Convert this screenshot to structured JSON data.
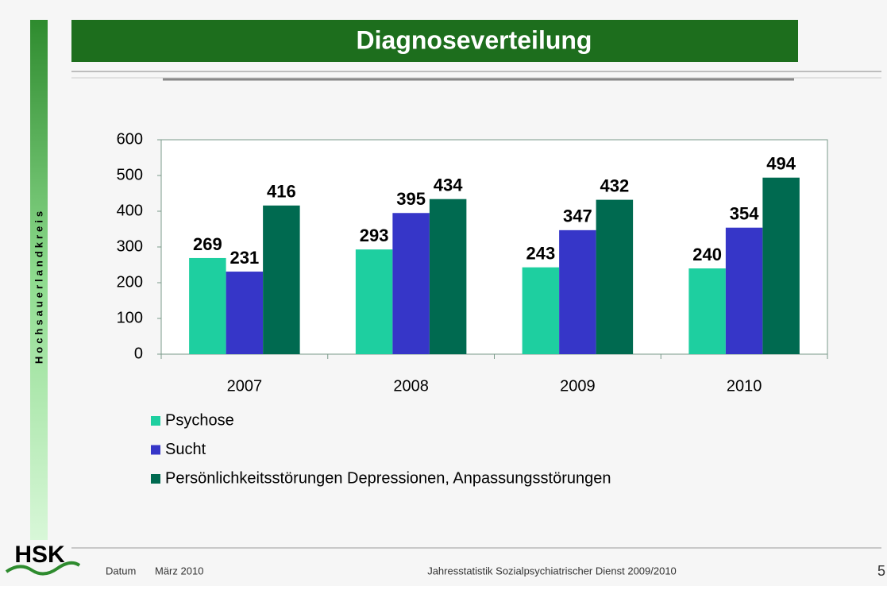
{
  "slide": {
    "side_label": "Hochsauerlandkreis",
    "logo": "HSK",
    "footer_label": "Datum",
    "footer_date": "März 2010",
    "footer_text": "Jahresstatistik Sozialpsychiatrischer Dienst 2009/2010",
    "page_number": "5"
  },
  "chart_data": {
    "type": "bar",
    "title": "Diagnoseverteilung",
    "categories": [
      "2007",
      "2008",
      "2009",
      "2010"
    ],
    "series": [
      {
        "name": "Psychose",
        "color": "#1ecfa0",
        "values": [
          269,
          293,
          243,
          240
        ]
      },
      {
        "name": "Sucht",
        "color": "#3636c8",
        "values": [
          231,
          395,
          347,
          354
        ]
      },
      {
        "name": "Persönlichkeitsstörungen Depressionen, Anpassungsstörungen",
        "color": "#006a50",
        "values": [
          416,
          434,
          432,
          494
        ]
      }
    ],
    "ylim": [
      0,
      600
    ],
    "yticks": [
      0,
      100,
      200,
      300,
      400,
      500,
      600
    ],
    "grid": false,
    "legend": "bottom"
  }
}
